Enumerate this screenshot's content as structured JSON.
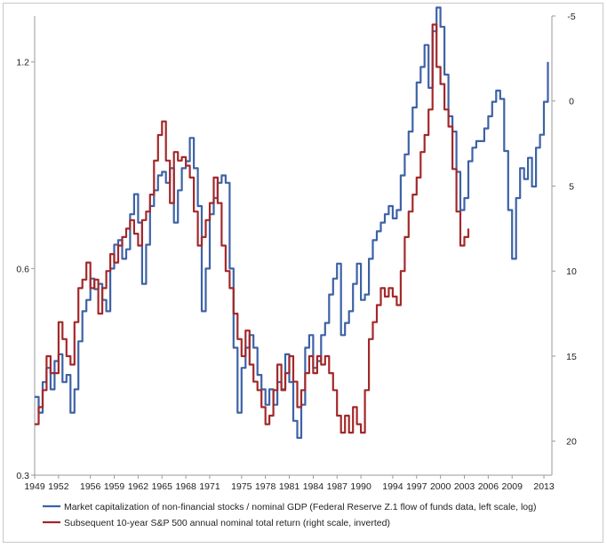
{
  "chart_data": {
    "type": "line",
    "title": "",
    "x_tick_labels": [
      "1949",
      "1952",
      "1956",
      "1959",
      "1962",
      "1965",
      "1968",
      "1971",
      "1975",
      "1978",
      "1981",
      "1984",
      "1987",
      "1990",
      "1994",
      "1997",
      "2000",
      "2003",
      "2006",
      "2009",
      "2013"
    ],
    "left_axis": {
      "scale": "log",
      "range": [
        0.3,
        1.4
      ],
      "tick_labels": [
        "1.2",
        "0.6",
        "0.3"
      ]
    },
    "right_axis": {
      "scale": "linear",
      "inverted": true,
      "range": [
        -5,
        22
      ],
      "tick_labels": [
        "-5",
        "0",
        "5",
        "10",
        "15",
        "20"
      ]
    },
    "grid": false,
    "legend_position": "bottom",
    "series": [
      {
        "name": "Market capitalization of non-financial stocks / nominal GDP (Federal Reserve Z.1 flow of funds data, left scale, log)",
        "axis": "left",
        "color": "#3d62a6",
        "points": [
          [
            1949.0,
            0.39
          ],
          [
            1949.5,
            0.37
          ],
          [
            1950.0,
            0.41
          ],
          [
            1950.5,
            0.43
          ],
          [
            1951.0,
            0.4
          ],
          [
            1951.5,
            0.44
          ],
          [
            1952.0,
            0.45
          ],
          [
            1952.5,
            0.41
          ],
          [
            1953.0,
            0.42
          ],
          [
            1953.5,
            0.37
          ],
          [
            1954.0,
            0.4
          ],
          [
            1954.5,
            0.47
          ],
          [
            1955.0,
            0.52
          ],
          [
            1955.5,
            0.54
          ],
          [
            1956.0,
            0.58
          ],
          [
            1956.5,
            0.56
          ],
          [
            1957.0,
            0.57
          ],
          [
            1957.5,
            0.54
          ],
          [
            1958.0,
            0.52
          ],
          [
            1958.5,
            0.6
          ],
          [
            1959.0,
            0.65
          ],
          [
            1959.5,
            0.66
          ],
          [
            1960.0,
            0.62
          ],
          [
            1960.5,
            0.64
          ],
          [
            1961.0,
            0.72
          ],
          [
            1961.5,
            0.77
          ],
          [
            1962.0,
            0.7
          ],
          [
            1962.5,
            0.57
          ],
          [
            1963.0,
            0.65
          ],
          [
            1963.5,
            0.74
          ],
          [
            1964.0,
            0.78
          ],
          [
            1964.5,
            0.82
          ],
          [
            1965.0,
            0.83
          ],
          [
            1965.5,
            0.8
          ],
          [
            1966.0,
            0.84
          ],
          [
            1966.5,
            0.7
          ],
          [
            1967.0,
            0.78
          ],
          [
            1967.5,
            0.84
          ],
          [
            1968.0,
            0.86
          ],
          [
            1968.5,
            0.93
          ],
          [
            1969.0,
            0.84
          ],
          [
            1969.5,
            0.74
          ],
          [
            1970.0,
            0.52
          ],
          [
            1970.5,
            0.6
          ],
          [
            1971.0,
            0.72
          ],
          [
            1971.5,
            0.76
          ],
          [
            1972.0,
            0.8
          ],
          [
            1972.5,
            0.82
          ],
          [
            1973.0,
            0.8
          ],
          [
            1973.5,
            0.6
          ],
          [
            1974.0,
            0.46
          ],
          [
            1974.5,
            0.37
          ],
          [
            1975.0,
            0.43
          ],
          [
            1975.5,
            0.46
          ],
          [
            1976.0,
            0.48
          ],
          [
            1976.5,
            0.46
          ],
          [
            1977.0,
            0.42
          ],
          [
            1977.5,
            0.4
          ],
          [
            1978.0,
            0.38
          ],
          [
            1978.5,
            0.4
          ],
          [
            1979.0,
            0.38
          ],
          [
            1979.5,
            0.41
          ],
          [
            1980.0,
            0.4
          ],
          [
            1980.5,
            0.45
          ],
          [
            1981.0,
            0.41
          ],
          [
            1981.5,
            0.36
          ],
          [
            1982.0,
            0.34
          ],
          [
            1982.5,
            0.38
          ],
          [
            1983.0,
            0.46
          ],
          [
            1983.5,
            0.48
          ],
          [
            1984.0,
            0.43
          ],
          [
            1984.5,
            0.44
          ],
          [
            1985.0,
            0.48
          ],
          [
            1985.5,
            0.5
          ],
          [
            1986.0,
            0.55
          ],
          [
            1986.5,
            0.58
          ],
          [
            1987.0,
            0.61
          ],
          [
            1987.5,
            0.48
          ],
          [
            1988.0,
            0.5
          ],
          [
            1988.5,
            0.52
          ],
          [
            1989.0,
            0.57
          ],
          [
            1989.5,
            0.61
          ],
          [
            1990.0,
            0.54
          ],
          [
            1990.5,
            0.55
          ],
          [
            1991.0,
            0.62
          ],
          [
            1991.5,
            0.66
          ],
          [
            1992.0,
            0.68
          ],
          [
            1992.5,
            0.7
          ],
          [
            1993.0,
            0.72
          ],
          [
            1993.5,
            0.74
          ],
          [
            1994.0,
            0.71
          ],
          [
            1994.5,
            0.73
          ],
          [
            1995.0,
            0.82
          ],
          [
            1995.5,
            0.88
          ],
          [
            1996.0,
            0.95
          ],
          [
            1996.5,
            1.03
          ],
          [
            1997.0,
            1.12
          ],
          [
            1997.5,
            1.18
          ],
          [
            1998.0,
            1.27
          ],
          [
            1998.5,
            1.1
          ],
          [
            1999.0,
            1.33
          ],
          [
            1999.5,
            1.44
          ],
          [
            2000.0,
            1.35
          ],
          [
            2000.5,
            1.15
          ],
          [
            2001.0,
            1.0
          ],
          [
            2001.5,
            0.95
          ],
          [
            2002.0,
            0.83
          ],
          [
            2002.5,
            0.73
          ],
          [
            2003.0,
            0.76
          ],
          [
            2003.5,
            0.86
          ],
          [
            2004.0,
            0.9
          ],
          [
            2004.5,
            0.92
          ],
          [
            2005.0,
            0.92
          ],
          [
            2005.5,
            0.96
          ],
          [
            2006.0,
            1.0
          ],
          [
            2006.5,
            1.05
          ],
          [
            2007.0,
            1.09
          ],
          [
            2007.5,
            1.06
          ],
          [
            2008.0,
            0.89
          ],
          [
            2008.5,
            0.73
          ],
          [
            2009.0,
            0.62
          ],
          [
            2009.5,
            0.76
          ],
          [
            2010.0,
            0.84
          ],
          [
            2010.5,
            0.81
          ],
          [
            2011.0,
            0.87
          ],
          [
            2011.5,
            0.79
          ],
          [
            2012.0,
            0.9
          ],
          [
            2012.5,
            0.94
          ],
          [
            2013.0,
            1.05
          ],
          [
            2013.5,
            1.2
          ]
        ]
      },
      {
        "name": "Subsequent 10-year S&P 500 annual nominal total return (right scale, inverted)",
        "axis": "right",
        "color": "#a3282a",
        "points": [
          [
            1949.0,
            19.0
          ],
          [
            1949.5,
            18.0
          ],
          [
            1950.0,
            17.0
          ],
          [
            1950.5,
            15.0
          ],
          [
            1951.0,
            16.0
          ],
          [
            1951.5,
            16.0
          ],
          [
            1952.0,
            13.0
          ],
          [
            1952.5,
            14.0
          ],
          [
            1953.0,
            15.0
          ],
          [
            1953.5,
            15.5
          ],
          [
            1954.0,
            13.0
          ],
          [
            1954.5,
            11.0
          ],
          [
            1955.0,
            10.5
          ],
          [
            1955.5,
            9.5
          ],
          [
            1956.0,
            11.0
          ],
          [
            1956.5,
            10.5
          ],
          [
            1957.0,
            12.5
          ],
          [
            1957.5,
            11.0
          ],
          [
            1958.0,
            10.0
          ],
          [
            1958.5,
            9.0
          ],
          [
            1959.0,
            9.5
          ],
          [
            1959.5,
            8.5
          ],
          [
            1960.0,
            8.0
          ],
          [
            1960.5,
            7.5
          ],
          [
            1961.0,
            7.0
          ],
          [
            1961.5,
            7.8
          ],
          [
            1962.0,
            8.5
          ],
          [
            1962.5,
            7.0
          ],
          [
            1963.0,
            6.5
          ],
          [
            1963.5,
            5.5
          ],
          [
            1964.0,
            3.5
          ],
          [
            1964.5,
            2.0
          ],
          [
            1965.0,
            1.2
          ],
          [
            1965.5,
            3.5
          ],
          [
            1966.0,
            6.0
          ],
          [
            1966.5,
            3.0
          ],
          [
            1967.0,
            3.5
          ],
          [
            1967.5,
            3.3
          ],
          [
            1968.0,
            3.8
          ],
          [
            1968.5,
            4.5
          ],
          [
            1969.0,
            6.5
          ],
          [
            1969.5,
            8.5
          ],
          [
            1970.0,
            8.0
          ],
          [
            1970.5,
            7.0
          ],
          [
            1971.0,
            6.0
          ],
          [
            1971.5,
            4.5
          ],
          [
            1972.0,
            6.0
          ],
          [
            1972.5,
            8.5
          ],
          [
            1973.0,
            10.0
          ],
          [
            1973.5,
            11.0
          ],
          [
            1974.0,
            12.5
          ],
          [
            1974.5,
            14.0
          ],
          [
            1975.0,
            15.0
          ],
          [
            1975.5,
            13.5
          ],
          [
            1976.0,
            15.5
          ],
          [
            1976.5,
            16.5
          ],
          [
            1977.0,
            17.0
          ],
          [
            1977.5,
            18.0
          ],
          [
            1978.0,
            19.0
          ],
          [
            1978.5,
            18.5
          ],
          [
            1979.0,
            17.0
          ],
          [
            1979.5,
            15.5
          ],
          [
            1980.0,
            17.0
          ],
          [
            1980.5,
            16.0
          ],
          [
            1981.0,
            15.0
          ],
          [
            1981.5,
            16.5
          ],
          [
            1982.0,
            18.0
          ],
          [
            1982.5,
            17.0
          ],
          [
            1983.0,
            16.0
          ],
          [
            1983.5,
            15.0
          ],
          [
            1984.0,
            16.0
          ],
          [
            1984.5,
            15.0
          ],
          [
            1985.0,
            15.5
          ],
          [
            1985.5,
            15.0
          ],
          [
            1986.0,
            16.0
          ],
          [
            1986.5,
            17.0
          ],
          [
            1987.0,
            18.5
          ],
          [
            1987.5,
            19.5
          ],
          [
            1988.0,
            18.5
          ],
          [
            1988.5,
            19.5
          ],
          [
            1989.0,
            18.0
          ],
          [
            1989.5,
            19.0
          ],
          [
            1990.0,
            19.5
          ],
          [
            1990.5,
            17.0
          ],
          [
            1991.0,
            14.0
          ],
          [
            1991.5,
            13.0
          ],
          [
            1992.0,
            12.0
          ],
          [
            1992.5,
            11.0
          ],
          [
            1993.0,
            11.5
          ],
          [
            1993.5,
            11.0
          ],
          [
            1994.0,
            11.5
          ],
          [
            1994.5,
            12.0
          ],
          [
            1995.0,
            10.0
          ],
          [
            1995.5,
            8.0
          ],
          [
            1996.0,
            6.5
          ],
          [
            1996.5,
            5.5
          ],
          [
            1997.0,
            4.5
          ],
          [
            1997.5,
            3.0
          ],
          [
            1998.0,
            2.0
          ],
          [
            1998.5,
            0.5
          ],
          [
            1999.0,
            -4.5
          ],
          [
            1999.5,
            -2.0
          ],
          [
            2000.0,
            -1.0
          ],
          [
            2000.5,
            0.5
          ],
          [
            2001.0,
            1.5
          ],
          [
            2001.5,
            4.0
          ],
          [
            2002.0,
            6.5
          ],
          [
            2002.5,
            8.5
          ],
          [
            2003.0,
            8.0
          ],
          [
            2003.5,
            7.5
          ]
        ]
      }
    ]
  }
}
